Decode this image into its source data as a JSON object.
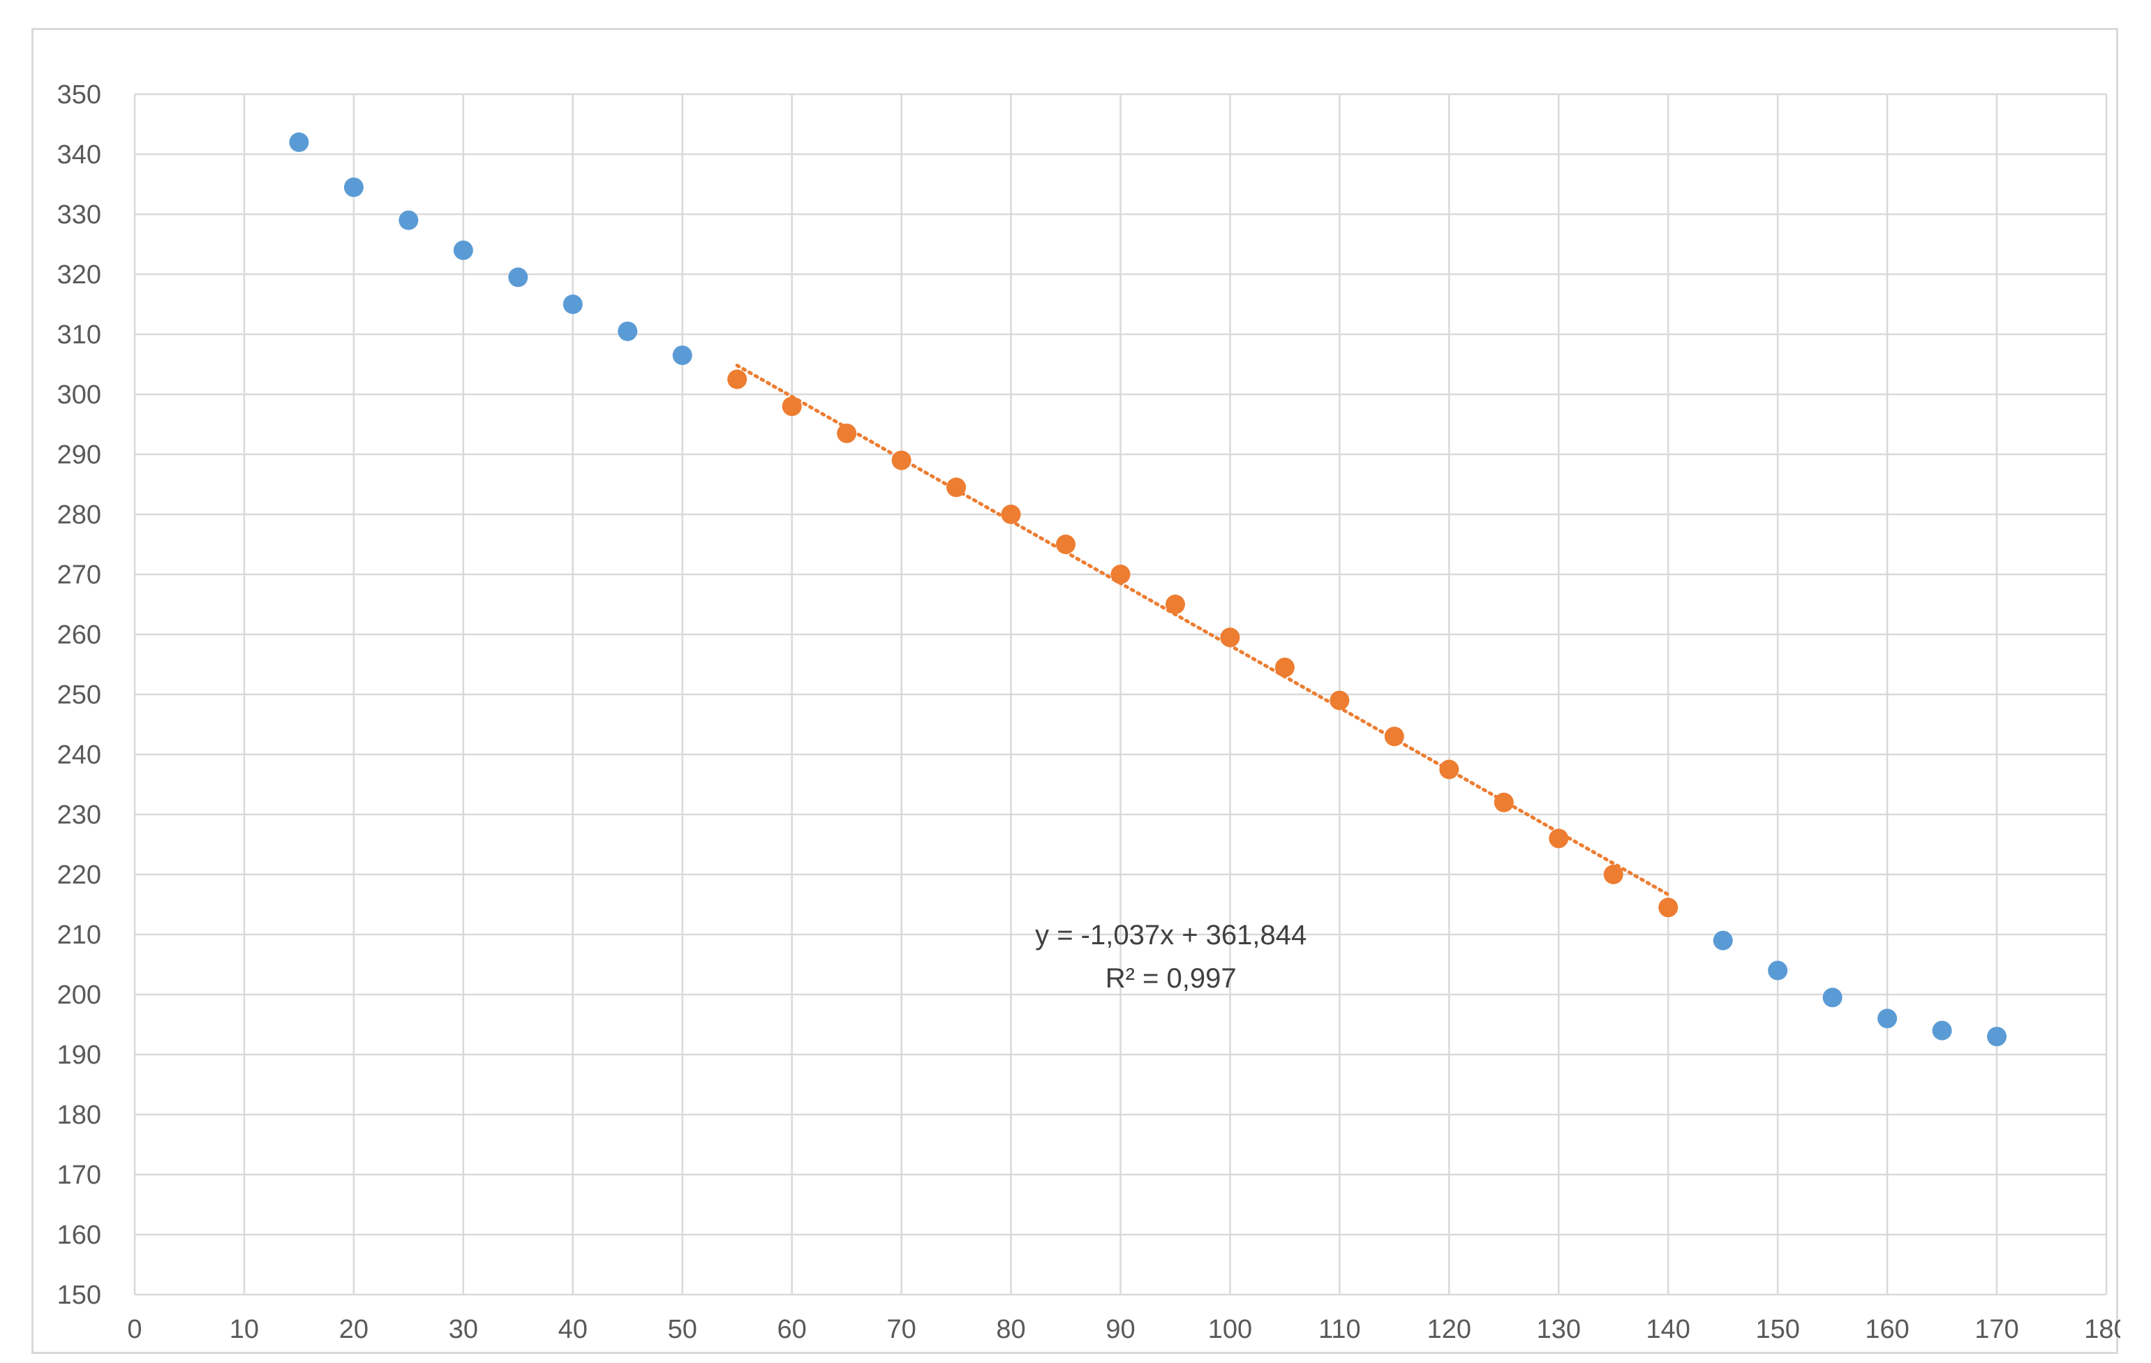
{
  "chart_data": {
    "type": "scatter",
    "title": "",
    "xlabel": "",
    "ylabel": "",
    "xlim": [
      0,
      180
    ],
    "ylim": [
      150,
      350
    ],
    "x_ticks": [
      "0",
      "10",
      "20",
      "30",
      "40",
      "50",
      "60",
      "70",
      "80",
      "90",
      "100",
      "110",
      "120",
      "130",
      "140",
      "150",
      "160",
      "170",
      "180"
    ],
    "y_ticks": [
      "150",
      "160",
      "170",
      "180",
      "190",
      "200",
      "210",
      "220",
      "230",
      "240",
      "250",
      "260",
      "270",
      "280",
      "290",
      "300",
      "310",
      "320",
      "330",
      "340",
      "350"
    ],
    "grid": true,
    "legend": "none",
    "series": [
      {
        "color": "#5b9bd5",
        "x": [
          15,
          20,
          25,
          30,
          35,
          40,
          45,
          50,
          145,
          150,
          155,
          160,
          165,
          170
        ],
        "y": [
          342,
          334.5,
          329,
          324,
          319.5,
          315,
          310.5,
          306.5,
          209,
          204,
          199.5,
          196,
          194,
          193
        ]
      },
      {
        "color": "#ed7d31",
        "x": [
          55,
          60,
          65,
          70,
          75,
          80,
          85,
          90,
          95,
          100,
          105,
          110,
          115,
          120,
          125,
          130,
          135,
          140
        ],
        "y": [
          302.5,
          298,
          293.5,
          289,
          284.5,
          280,
          275,
          270,
          265,
          259.5,
          254.5,
          249,
          243,
          237.5,
          232,
          226,
          220,
          214.5
        ]
      }
    ],
    "trendline": {
      "series_color": "#ed7d31",
      "style": "dotted",
      "x_range": [
        55,
        140
      ],
      "slope": -1.037,
      "intercept": 361.844,
      "equation_label": "y = -1,037x + 361,844",
      "r2_label": "R² = 0,997"
    }
  }
}
